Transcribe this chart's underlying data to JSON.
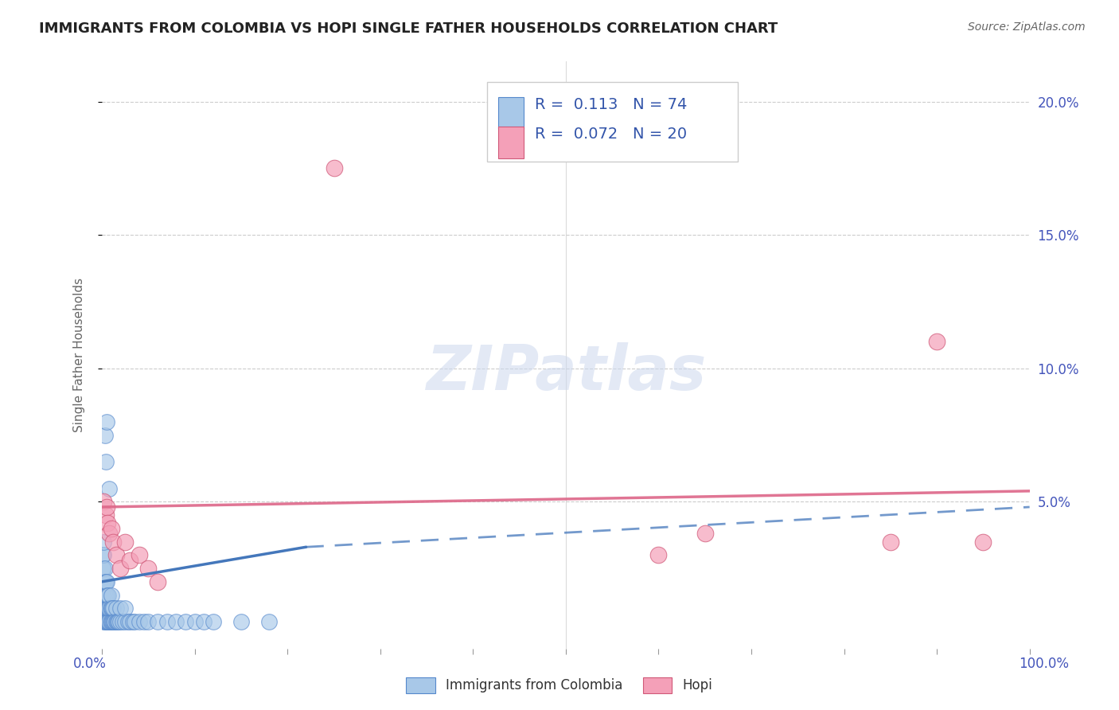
{
  "title": "IMMIGRANTS FROM COLOMBIA VS HOPI SINGLE FATHER HOUSEHOLDS CORRELATION CHART",
  "source": "Source: ZipAtlas.com",
  "ylabel": "Single Father Households",
  "xlim": [
    0,
    1.0
  ],
  "ylim": [
    -0.005,
    0.215
  ],
  "ytick_positions": [
    0.05,
    0.1,
    0.15,
    0.2
  ],
  "ytick_labels": [
    "5.0%",
    "10.0%",
    "15.0%",
    "20.0%"
  ],
  "legend_label1": "Immigrants from Colombia",
  "legend_label2": "Hopi",
  "blue_color": "#a8c8e8",
  "blue_edge_color": "#5588cc",
  "pink_color": "#f4a0b8",
  "pink_edge_color": "#d05878",
  "blue_line_color": "#4477bb",
  "pink_line_color": "#dd6688",
  "colombia_x": [
    0.001,
    0.001,
    0.001,
    0.001,
    0.001,
    0.002,
    0.002,
    0.002,
    0.002,
    0.002,
    0.002,
    0.002,
    0.003,
    0.003,
    0.003,
    0.003,
    0.003,
    0.004,
    0.004,
    0.004,
    0.004,
    0.005,
    0.005,
    0.005,
    0.005,
    0.006,
    0.006,
    0.006,
    0.007,
    0.007,
    0.007,
    0.008,
    0.008,
    0.009,
    0.009,
    0.01,
    0.01,
    0.01,
    0.011,
    0.011,
    0.012,
    0.012,
    0.013,
    0.014,
    0.015,
    0.015,
    0.016,
    0.017,
    0.018,
    0.02,
    0.02,
    0.022,
    0.025,
    0.025,
    0.028,
    0.03,
    0.033,
    0.035,
    0.04,
    0.045,
    0.05,
    0.06,
    0.07,
    0.08,
    0.09,
    0.1,
    0.11,
    0.12,
    0.15,
    0.18,
    0.003,
    0.004,
    0.005,
    0.008
  ],
  "colombia_y": [
    0.01,
    0.015,
    0.02,
    0.025,
    0.03,
    0.005,
    0.01,
    0.015,
    0.02,
    0.025,
    0.03,
    0.035,
    0.005,
    0.01,
    0.015,
    0.02,
    0.025,
    0.005,
    0.01,
    0.015,
    0.02,
    0.005,
    0.01,
    0.015,
    0.02,
    0.005,
    0.01,
    0.015,
    0.005,
    0.01,
    0.015,
    0.005,
    0.01,
    0.005,
    0.01,
    0.005,
    0.01,
    0.015,
    0.005,
    0.01,
    0.005,
    0.01,
    0.005,
    0.005,
    0.005,
    0.01,
    0.005,
    0.005,
    0.005,
    0.005,
    0.01,
    0.005,
    0.005,
    0.01,
    0.005,
    0.005,
    0.005,
    0.005,
    0.005,
    0.005,
    0.005,
    0.005,
    0.005,
    0.005,
    0.005,
    0.005,
    0.005,
    0.005,
    0.005,
    0.005,
    0.075,
    0.065,
    0.08,
    0.055
  ],
  "hopi_x": [
    0.002,
    0.004,
    0.005,
    0.006,
    0.008,
    0.01,
    0.012,
    0.015,
    0.02,
    0.025,
    0.03,
    0.04,
    0.05,
    0.06,
    0.25,
    0.6,
    0.65,
    0.85,
    0.9,
    0.95
  ],
  "hopi_y": [
    0.05,
    0.045,
    0.048,
    0.042,
    0.038,
    0.04,
    0.035,
    0.03,
    0.025,
    0.035,
    0.028,
    0.03,
    0.025,
    0.02,
    0.175,
    0.03,
    0.038,
    0.035,
    0.11,
    0.035
  ],
  "blue_trend_x0": 0.0,
  "blue_trend_x_break": 0.22,
  "blue_trend_x1": 1.0,
  "blue_trend_y0": 0.02,
  "blue_trend_y_break": 0.033,
  "blue_trend_y1": 0.048,
  "pink_trend_x0": 0.0,
  "pink_trend_x1": 1.0,
  "pink_trend_y0": 0.048,
  "pink_trend_y1": 0.054
}
